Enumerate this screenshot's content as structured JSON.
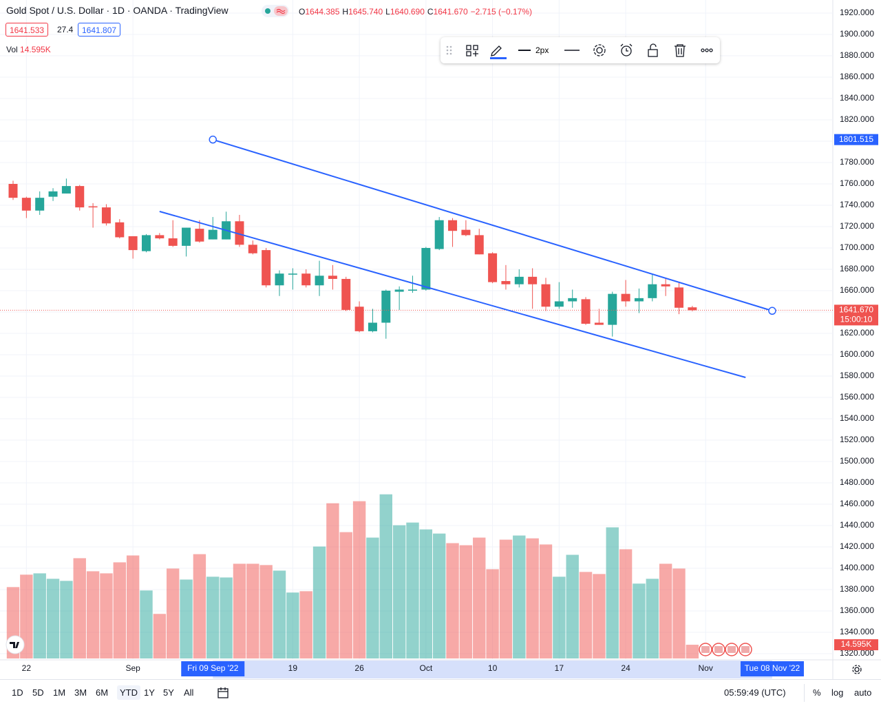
{
  "header": {
    "title": "Gold Spot / U.S. Dollar · 1D · OANDA · TradingView",
    "ohlc": [
      {
        "key": "O",
        "value": "1644.385"
      },
      {
        "key": "H",
        "value": "1645.740"
      },
      {
        "key": "L",
        "value": "1640.690"
      },
      {
        "key": "C",
        "value": "1641.670"
      }
    ],
    "change": "−2.715 (−0.17%)",
    "sell": "1641.533",
    "spread": "27.4",
    "buy": "1641.807",
    "vol_label": "Vol"
  },
  "toolbar": {
    "width_label": "2px"
  },
  "bottom_bar": {
    "ranges": [
      "1D",
      "5D",
      "1M",
      "3M",
      "6M",
      "YTD",
      "1Y",
      "5Y",
      "All"
    ],
    "selected": "YTD",
    "clock": "05:59:49 (UTC)",
    "options": [
      "%",
      "log",
      "auto"
    ]
  },
  "chart_data": {
    "type": "candlestick",
    "categories": [
      "2022-08-19",
      "2022-08-22",
      "2022-08-23",
      "2022-08-24",
      "2022-08-25",
      "2022-08-26",
      "2022-08-29",
      "2022-08-30",
      "2022-08-31",
      "2022-09-01",
      "2022-09-02",
      "2022-09-05",
      "2022-09-06",
      "2022-09-07",
      "2022-09-08",
      "2022-09-09",
      "2022-09-12",
      "2022-09-13",
      "2022-09-14",
      "2022-09-15",
      "2022-09-16",
      "2022-09-19",
      "2022-09-20",
      "2022-09-21",
      "2022-09-22",
      "2022-09-23",
      "2022-09-26",
      "2022-09-27",
      "2022-09-28",
      "2022-09-29",
      "2022-09-30",
      "2022-10-03",
      "2022-10-04",
      "2022-10-05",
      "2022-10-06",
      "2022-10-07",
      "2022-10-10",
      "2022-10-11",
      "2022-10-12",
      "2022-10-13",
      "2022-10-14",
      "2022-10-17",
      "2022-10-18",
      "2022-10-19",
      "2022-10-20",
      "2022-10-21",
      "2022-10-24",
      "2022-10-25",
      "2022-10-26",
      "2022-10-27",
      "2022-10-28",
      "2022-10-31"
    ],
    "open": [
      1760,
      1747,
      1735,
      1748,
      1751,
      1758,
      1739,
      1738,
      1724,
      1711,
      1697,
      1712,
      1709,
      1702,
      1718,
      1708,
      1708,
      1725,
      1703,
      1698,
      1665,
      1675,
      1676,
      1665,
      1674,
      1671,
      1645,
      1622,
      1630,
      1659,
      1660,
      1661,
      1699,
      1726,
      1717,
      1712,
      1695,
      1669,
      1666,
      1673,
      1666,
      1645,
      1650,
      1652,
      1630,
      1628,
      1657,
      1650,
      1653,
      1666,
      1663,
      1644.385
    ],
    "high": [
      1763,
      1748,
      1753,
      1756,
      1765,
      1759,
      1742,
      1741,
      1727,
      1711,
      1713,
      1714,
      1726,
      1719,
      1726,
      1729,
      1734,
      1731,
      1707,
      1700,
      1679,
      1681,
      1680,
      1688,
      1684,
      1673,
      1650,
      1643,
      1661,
      1664,
      1674,
      1701,
      1729,
      1728,
      1726,
      1718,
      1696,
      1684,
      1680,
      1681,
      1672,
      1668,
      1661,
      1654,
      1643,
      1659,
      1670,
      1662,
      1675,
      1672,
      1668,
      1645.74
    ],
    "low": [
      1745,
      1728,
      1731,
      1744,
      1751,
      1735,
      1719,
      1721,
      1709,
      1690,
      1696,
      1708,
      1701,
      1692,
      1705,
      1708,
      1708,
      1701,
      1694,
      1663,
      1655,
      1661,
      1663,
      1655,
      1661,
      1641,
      1621,
      1621,
      1615,
      1642,
      1658,
      1660,
      1698,
      1701,
      1711,
      1694,
      1667,
      1661,
      1663,
      1643,
      1641,
      1643,
      1644,
      1628,
      1628,
      1617,
      1645,
      1639,
      1650,
      1655,
      1638,
      1640.69
    ],
    "close": [
      1747,
      1735,
      1747,
      1753,
      1758,
      1738,
      1738,
      1723,
      1710,
      1698,
      1712,
      1709,
      1702,
      1719,
      1706,
      1717,
      1725,
      1703,
      1695,
      1665,
      1676,
      1676,
      1665,
      1674,
      1671,
      1642,
      1622,
      1630,
      1660,
      1661,
      1661,
      1700,
      1726,
      1716,
      1712,
      1694,
      1668,
      1666,
      1673,
      1666,
      1645,
      1650,
      1653,
      1629,
      1628,
      1657,
      1650,
      1653,
      1666,
      1664,
      1644,
      1641.67
    ],
    "up_color": "#26a69a",
    "down_color": "#ef5350",
    "volume": {
      "values": [
        75.9,
        89.1,
        90.5,
        84.7,
        82.5,
        106.6,
        92.7,
        90.5,
        102.2,
        109.5,
        72.3,
        47.4,
        95.6,
        83.9,
        110.9,
        86.9,
        86.1,
        100.7,
        100.7,
        99.3,
        93.4,
        70.1,
        71.5,
        119.0,
        165.0,
        134.3,
        167.2,
        128.5,
        174.5,
        141.6,
        144.5,
        137.2,
        132.8,
        122.6,
        120.4,
        128.5,
        94.9,
        126.3,
        130.7,
        127.7,
        121.2,
        86.9,
        110.2,
        92.0,
        89.8,
        139.4,
        116.1,
        79.6,
        84.7,
        100.7,
        95.6,
        14.595
      ],
      "ylim": [
        0,
        700
      ],
      "last_label": "14.595K"
    },
    "last_price": {
      "value": 1641.67,
      "label": "1641.670",
      "countdown": "15:00:10"
    },
    "trendlines": [
      {
        "color": "#2962ff",
        "points": [
          {
            "date": "2022-09-09",
            "date_label": "Fri 09 Sep '22",
            "price": 1801.515
          },
          {
            "date": "2022-11-08",
            "date_label": "Tue 08 Nov '22",
            "price": 1641.125
          }
        ]
      },
      {
        "color": "#2962ff",
        "points": [
          {
            "date": "2022-09-05",
            "price": 1734.2
          },
          {
            "date": "2022-11-04",
            "price": 1578.7
          }
        ]
      }
    ],
    "ylim": [
      1320,
      1920
    ],
    "yticks": [
      {
        "value": 1320,
        "label": "1320.000"
      },
      {
        "value": 1340,
        "label": "1340.000"
      },
      {
        "value": 1360,
        "label": "1360.000"
      },
      {
        "value": 1380,
        "label": "1380.000"
      },
      {
        "value": 1400,
        "label": "1400.000"
      },
      {
        "value": 1420,
        "label": "1420.000"
      },
      {
        "value": 1440,
        "label": "1440.000"
      },
      {
        "value": 1460,
        "label": "1460.000"
      },
      {
        "value": 1480,
        "label": "1480.000"
      },
      {
        "value": 1500,
        "label": "1500.000"
      },
      {
        "value": 1520,
        "label": "1520.000"
      },
      {
        "value": 1540,
        "label": "1540.000"
      },
      {
        "value": 1560,
        "label": "1560.000"
      },
      {
        "value": 1580,
        "label": "1580.000"
      },
      {
        "value": 1600,
        "label": "1600.000"
      },
      {
        "value": 1620,
        "label": "1620.000"
      },
      {
        "value": 1640,
        "label": "1640.000"
      },
      {
        "value": 1660,
        "label": "1660.000"
      },
      {
        "value": 1680,
        "label": "1680.000"
      },
      {
        "value": 1700,
        "label": "1700.000"
      },
      {
        "value": 1720,
        "label": "1720.000"
      },
      {
        "value": 1740,
        "label": "1740.000"
      },
      {
        "value": 1760,
        "label": "1760.000"
      },
      {
        "value": 1780,
        "label": "1780.000"
      },
      {
        "value": 1800,
        "label": "1800.000"
      },
      {
        "value": 1820,
        "label": "1820.000"
      },
      {
        "value": 1840,
        "label": "1840.000"
      },
      {
        "value": 1860,
        "label": "1860.000"
      },
      {
        "value": 1880,
        "label": "1880.000"
      },
      {
        "value": 1900,
        "label": "1900.000"
      },
      {
        "value": 1920,
        "label": "1920.000"
      }
    ],
    "xticks": [
      {
        "value": "2022-08-22",
        "label": "22"
      },
      {
        "value": "2022-09-01",
        "label": "Sep"
      },
      {
        "value": "2022-09-19",
        "label": "19"
      },
      {
        "value": "2022-09-26",
        "label": "26"
      },
      {
        "value": "2022-10-03",
        "label": "Oct"
      },
      {
        "value": "2022-10-10",
        "label": "10"
      },
      {
        "value": "2022-10-17",
        "label": "17"
      },
      {
        "value": "2022-10-24",
        "label": "24"
      },
      {
        "value": "2022-11-01",
        "label": "Nov"
      }
    ],
    "grid": true
  }
}
